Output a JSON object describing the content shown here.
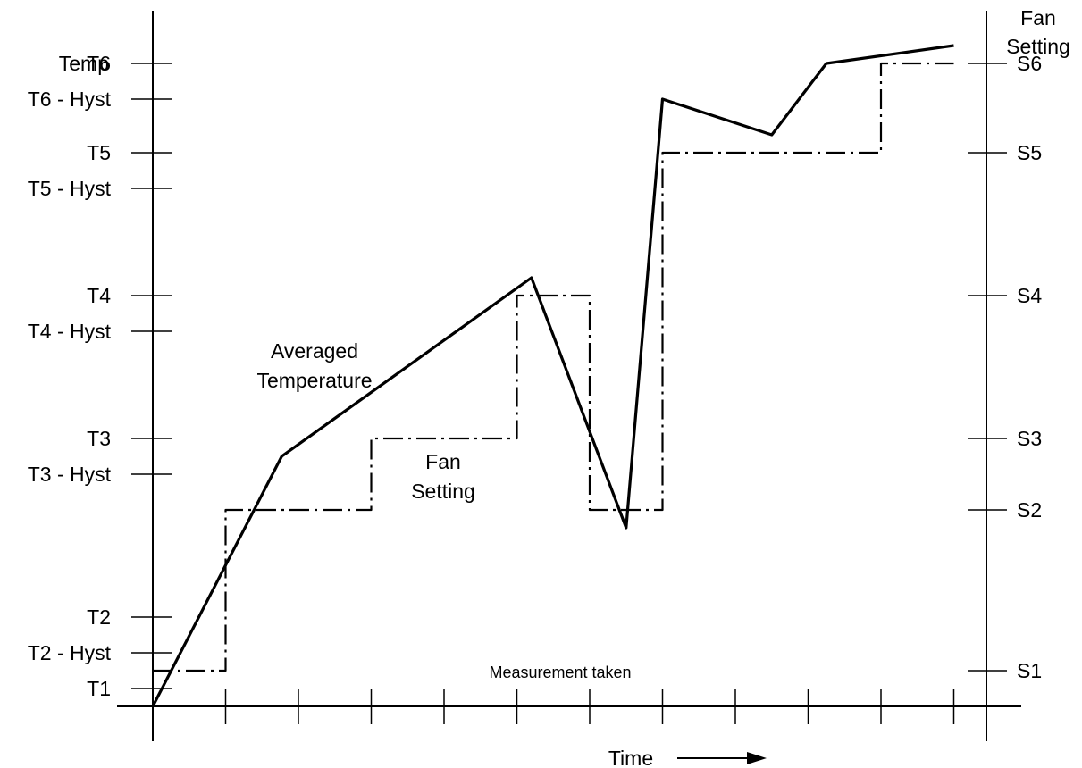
{
  "chart_data": {
    "type": "line",
    "left_axis": {
      "label": "Temp",
      "levels": [
        {
          "label": "T1",
          "value": 1.0
        },
        {
          "label": "T2 - Hyst",
          "value": 1.5
        },
        {
          "label": "T2",
          "value": 2.0
        },
        {
          "label": "T3 - Hyst",
          "value": 4.0
        },
        {
          "label": "T3",
          "value": 4.5
        },
        {
          "label": "T4 - Hyst",
          "value": 6.0
        },
        {
          "label": "T4",
          "value": 6.5
        },
        {
          "label": "T5 - Hyst",
          "value": 8.0
        },
        {
          "label": "T5",
          "value": 8.5
        },
        {
          "label": "T6 - Hyst",
          "value": 9.25
        },
        {
          "label": "T6",
          "value": 9.75
        }
      ]
    },
    "right_axis": {
      "label_line1": "Fan",
      "label_line2": "Setting",
      "levels": [
        {
          "label": "S1",
          "value": 1.25
        },
        {
          "label": "S2",
          "value": 3.5
        },
        {
          "label": "S3",
          "value": 4.5
        },
        {
          "label": "S4",
          "value": 6.5
        },
        {
          "label": "S5",
          "value": 8.5
        },
        {
          "label": "S6",
          "value": 9.75
        }
      ]
    },
    "x_axis": {
      "label": "Time",
      "arrow": "→",
      "ticks": [
        0,
        1,
        2,
        3,
        4,
        5,
        6,
        7,
        8,
        9,
        10,
        11
      ],
      "annotation": "Measurement taken"
    },
    "ylim": [
      0.75,
      10.5
    ],
    "xlim": [
      0,
      11.5
    ],
    "series": [
      {
        "name": "Averaged Temperature",
        "name_line1": "Averaged",
        "name_line2": "Temperature",
        "style": "solid",
        "x": [
          0,
          1.77,
          5.2,
          6.5,
          7.0,
          8.5,
          9.25,
          11.0
        ],
        "y": [
          0.75,
          4.25,
          6.75,
          3.25,
          9.25,
          8.75,
          9.75,
          10.0
        ]
      },
      {
        "name": "Fan Setting",
        "name_line1": "Fan",
        "name_line2": "Setting",
        "style": "dash-dot",
        "x": [
          0,
          1,
          1,
          3,
          3,
          5,
          5,
          6,
          6,
          7,
          7,
          10,
          10,
          11
        ],
        "y": [
          1.25,
          1.25,
          3.5,
          3.5,
          4.5,
          4.5,
          6.5,
          6.5,
          3.5,
          3.5,
          8.5,
          8.5,
          9.75,
          9.75
        ]
      }
    ],
    "grid": false,
    "colors": {
      "line": "#000000",
      "background": "#ffffff"
    }
  }
}
